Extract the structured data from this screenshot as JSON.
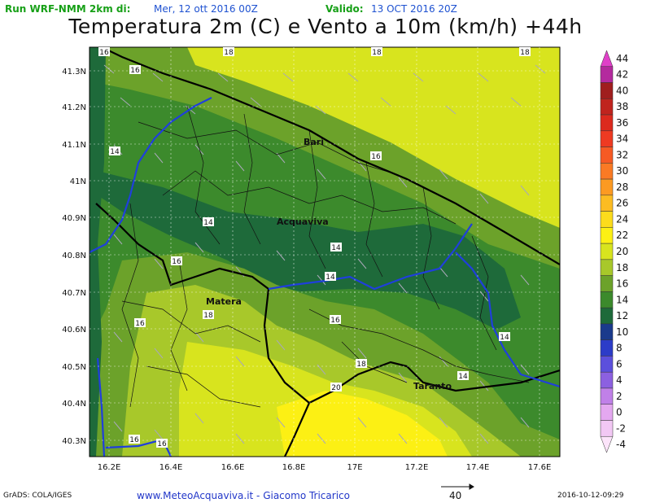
{
  "header": {
    "run_label": "Run WRF-NMM 2km di:",
    "run_date": "Mer, 12 ott 2016 00Z",
    "valid_label": "Valido:",
    "valid_date": "13 OCT 2016 20Z",
    "title": "Temperatura 2m (C) e Vento a 10m (km/h) +44h"
  },
  "map": {
    "lat_labels": [
      "41.3N",
      "41.2N",
      "41.1N",
      "41N",
      "40.9N",
      "40.8N",
      "40.7N",
      "40.6N",
      "40.5N",
      "40.4N",
      "40.3N"
    ],
    "lon_labels": [
      "16.2E",
      "16.4E",
      "16.6E",
      "16.8E",
      "17E",
      "17.2E",
      "17.4E",
      "17.6E"
    ],
    "cities": [
      "Bari",
      "Acquaviva",
      "Matera",
      "Taranto"
    ],
    "contour_labels": [
      "16",
      "16",
      "18",
      "18",
      "18",
      "14",
      "16",
      "14",
      "14",
      "14",
      "16",
      "14",
      "18",
      "16",
      "16",
      "14",
      "18",
      "20",
      "16",
      "16"
    ]
  },
  "colorbar": {
    "levels": [
      "44",
      "42",
      "40",
      "38",
      "36",
      "34",
      "32",
      "30",
      "28",
      "26",
      "24",
      "22",
      "20",
      "18",
      "16",
      "14",
      "12",
      "10",
      "8",
      "6",
      "4",
      "2",
      "0",
      "-2",
      "-4"
    ],
    "colors": [
      "#e040c8",
      "#b42a9e",
      "#a01e1e",
      "#c0241e",
      "#dc2a1e",
      "#ee3a22",
      "#f65a24",
      "#fa7a24",
      "#fc9a22",
      "#fcbc22",
      "#fcdc1c",
      "#fcf014",
      "#d8e41e",
      "#a8c82a",
      "#6ca22a",
      "#3c8a2c",
      "#1e6a3a",
      "#1a3a8c",
      "#2c3cc8",
      "#5c50dc",
      "#8c60e0",
      "#c080e8",
      "#e4a8f0",
      "#f2c8f4",
      "#fce4fa"
    ]
  },
  "footer": {
    "left": "GrADS: COLA/IGES",
    "center": "www.MeteoAcquaviva.it  -  Giacomo Tricarico",
    "vector_ref": "40",
    "right": "2016-10-12-09:29"
  }
}
